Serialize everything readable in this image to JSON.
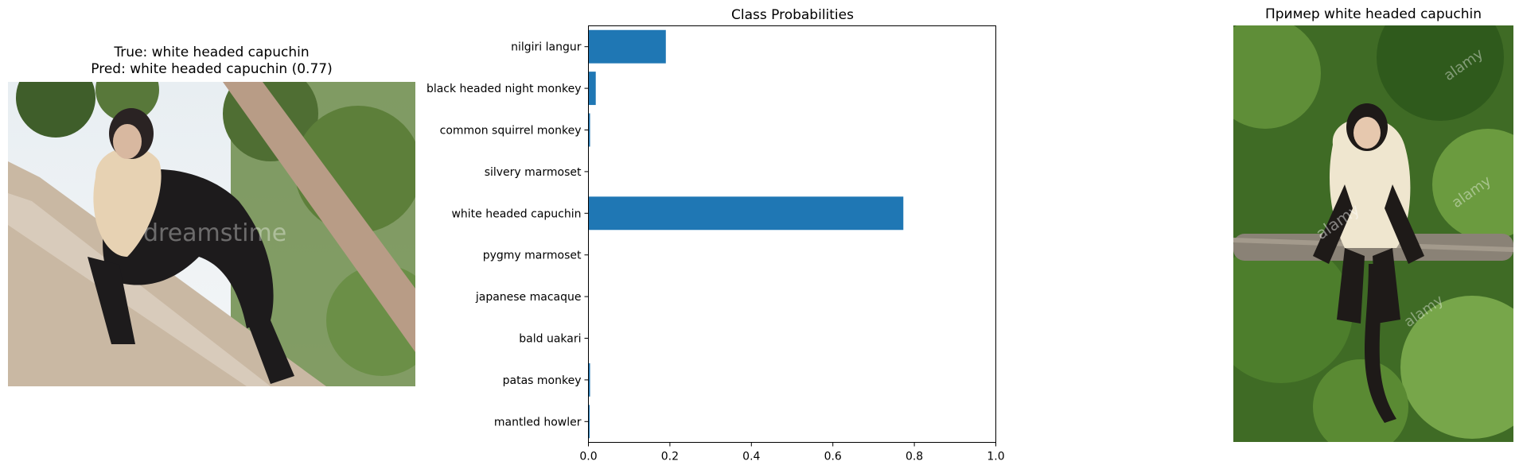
{
  "left_panel": {
    "title_line1": "True: white headed capuchin",
    "title_line2": "Pred: white headed capuchin (0.77)",
    "photo": {
      "subject": "white headed capuchin on tree trunk",
      "watermark": "dreamstime"
    }
  },
  "right_panel": {
    "title": "Пример white headed capuchin",
    "photo": {
      "subject": "white headed capuchin sitting on branch",
      "watermark": "alamy"
    }
  },
  "chart_data": {
    "type": "bar",
    "orientation": "horizontal",
    "title": "Class Probabilities",
    "xlabel": "",
    "ylabel": "",
    "categories": [
      "nilgiri langur",
      "black headed night monkey",
      "common squirrel monkey",
      "silvery marmoset",
      "white headed capuchin",
      "pygmy marmoset",
      "japanese macaque",
      "bald uakari",
      "patas monkey",
      "mantled howler"
    ],
    "values": [
      0.19,
      0.018,
      0.004,
      0.0,
      0.773,
      0.0,
      0.0,
      0.0,
      0.004,
      0.003
    ],
    "xlim": [
      0,
      1
    ],
    "xticks": [
      "0.0",
      "0.2",
      "0.4",
      "0.6",
      "0.8",
      "1.0"
    ],
    "bar_color": "#1f77b4",
    "grid": false
  }
}
